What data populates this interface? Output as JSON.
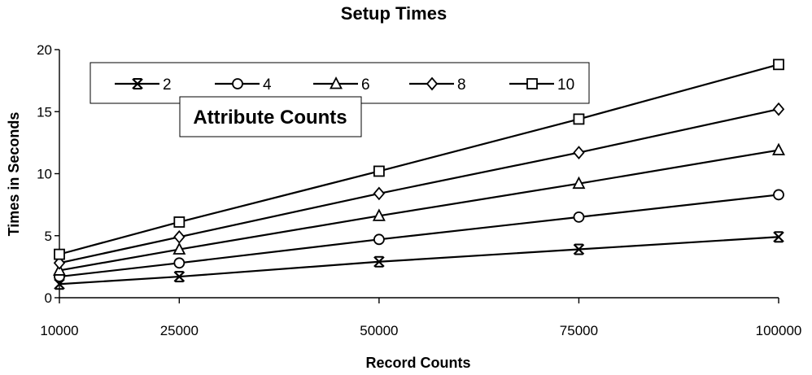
{
  "chart_data": {
    "type": "line",
    "title": "Setup Times",
    "xlabel": "Record Counts",
    "ylabel": "Times in Seconds",
    "x": [
      10000,
      25000,
      50000,
      75000,
      100000
    ],
    "x_tick_labels": [
      "10000",
      "25000",
      "50000",
      "75000",
      "100000"
    ],
    "y_ticks": [
      0,
      5,
      10,
      15,
      20
    ],
    "y_tick_labels": [
      "0",
      "5",
      "10",
      "15",
      "20"
    ],
    "xlim": [
      10000,
      100000
    ],
    "ylim": [
      0,
      20
    ],
    "grid": false,
    "legend_placement": "top-left",
    "annotation": "Attribute Counts",
    "series": [
      {
        "name": "2",
        "marker": "asterisk",
        "values": [
          1.1,
          1.7,
          2.9,
          3.9,
          4.9
        ]
      },
      {
        "name": "4",
        "marker": "circle",
        "values": [
          1.7,
          2.8,
          4.7,
          6.5,
          8.3
        ]
      },
      {
        "name": "6",
        "marker": "triangle",
        "values": [
          2.2,
          3.9,
          6.6,
          9.2,
          11.9
        ]
      },
      {
        "name": "8",
        "marker": "diamond",
        "values": [
          2.8,
          4.9,
          8.4,
          11.7,
          15.2
        ]
      },
      {
        "name": "10",
        "marker": "square",
        "values": [
          3.5,
          6.1,
          10.2,
          14.4,
          18.8
        ]
      }
    ],
    "colors": {
      "line": "#000000",
      "marker_fill": "#ffffff",
      "background": "#ffffff"
    }
  }
}
